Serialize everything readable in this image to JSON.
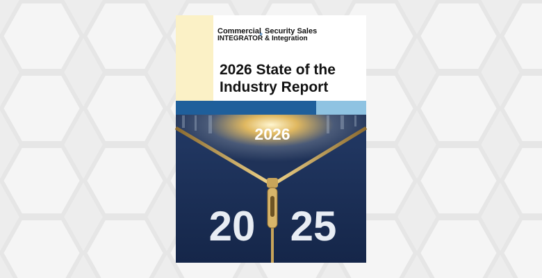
{
  "cover": {
    "logo_left": {
      "line1": "Commercial",
      "line2": "INTEGRATOR"
    },
    "logo_plus": "+",
    "logo_right": {
      "line1": "Security Sales",
      "line2": "& Integration"
    },
    "title": {
      "line1": "2026 State of the",
      "line2": "Industry Report"
    },
    "upper_year": "2026",
    "lower_year_left": "20",
    "lower_year_right": "25"
  }
}
